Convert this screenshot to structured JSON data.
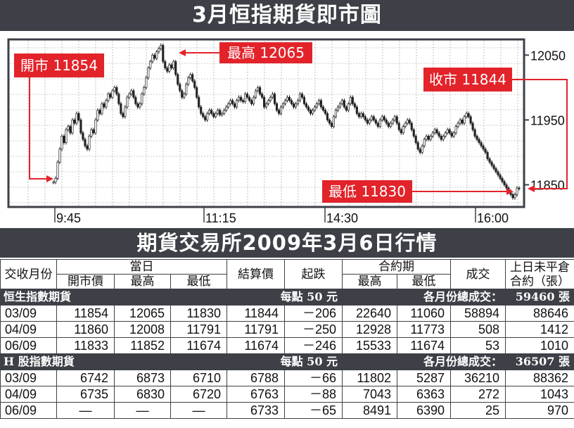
{
  "header": {
    "title": "3月恒指期貨即市圖"
  },
  "chart_data": {
    "type": "candlestick",
    "title": "3月恒指期貨即市圖",
    "x_ticks": [
      "9:45",
      "11:15",
      "14:30",
      "16:00"
    ],
    "y_ticks": [
      12050,
      11950,
      11850
    ],
    "ylim": [
      11818,
      12072
    ],
    "grid": true,
    "annotations": {
      "open": "開市 11854",
      "high": "最高 12065",
      "close": "收市 11844",
      "low": "最低 11830"
    },
    "series": [
      {
        "values": [
          11854,
          11860,
          11885,
          11905,
          11925,
          11915,
          11935,
          11940,
          11930,
          11950,
          11945,
          11960,
          11950,
          11930,
          11920,
          11910,
          11905,
          11925,
          11935,
          11930,
          11950,
          11965,
          11960,
          11975,
          11970,
          11980,
          11990,
          11985,
          11995,
          12000,
          11990,
          11975,
          11960,
          11955,
          11970,
          11985,
          11990,
          11995,
          11985,
          11975,
          11970,
          11975,
          11990,
          12000,
          12015,
          12030,
          12040,
          12050,
          12045,
          12055,
          12060,
          12065,
          12040,
          12030,
          12025,
          12035,
          12030,
          12040,
          12020,
          12005,
          11995,
          11985,
          11990,
          12005,
          12015,
          12020,
          12010,
          12000,
          11985,
          11970,
          11960,
          11955,
          11950,
          11960,
          11965,
          11960,
          11955,
          11960,
          11965,
          11958,
          11960,
          11965,
          11970,
          11975,
          11980,
          11975,
          11970,
          11980,
          11985,
          11980,
          11978,
          11990,
          11985,
          11980,
          11975,
          11985,
          11995,
          12000,
          11990,
          11985,
          11970,
          11975,
          11980,
          11985,
          11990,
          11975,
          11965,
          11960,
          11970,
          11975,
          11980,
          11985,
          11980,
          11975,
          11970,
          11975,
          11980,
          11990,
          11985,
          11975,
          11970,
          11965,
          11960,
          11965,
          11970,
          11975,
          11980,
          11970,
          11965,
          11960,
          11950,
          11945,
          11940,
          11955,
          11965,
          11970,
          11975,
          11980,
          11970,
          11965,
          11975,
          11985,
          11975,
          11970,
          11960,
          11955,
          11960,
          11955,
          11950,
          11945,
          11950,
          11955,
          11950,
          11945,
          11940,
          11950,
          11955,
          11950,
          11945,
          11940,
          11945,
          11950,
          11955,
          11945,
          11935,
          11930,
          11940,
          11945,
          11950,
          11945,
          11935,
          11925,
          11915,
          11905,
          11900,
          11910,
          11920,
          11925,
          11920,
          11925,
          11930,
          11935,
          11930,
          11925,
          11920,
          11925,
          11930,
          11935,
          11930,
          11925,
          11930,
          11940,
          11945,
          11950,
          11945,
          11955,
          11960,
          11955,
          11945,
          11935,
          11925,
          11920,
          11915,
          11910,
          11905,
          11900,
          11890,
          11885,
          11880,
          11875,
          11870,
          11865,
          11860,
          11855,
          11850,
          11845,
          11840,
          11835,
          11830,
          11835,
          11845,
          11844
        ]
      }
    ]
  },
  "table": {
    "title": "期貨交易所2009年3月6日行情",
    "headers": {
      "month": "交收月份",
      "today": "當日",
      "open": "開市價",
      "high": "最高",
      "low": "最低",
      "settle": "結算價",
      "change": "起跌",
      "contract": "合約期",
      "c_high": "最高",
      "c_low": "最低",
      "volume": "成交",
      "oi": "上日未平倉合約（張）"
    },
    "sections": [
      {
        "name": "恒生指數期貨",
        "per_point": "每點 50 元",
        "total_label": "各月份總成交：",
        "total": "59460 張",
        "rows": [
          [
            "03/09",
            "11854",
            "12065",
            "11830",
            "11844",
            "－206",
            "22640",
            "11060",
            "58894",
            "88646"
          ],
          [
            "04/09",
            "11860",
            "12008",
            "11791",
            "11791",
            "－250",
            "12928",
            "11773",
            "508",
            "1412"
          ],
          [
            "06/09",
            "11833",
            "11852",
            "11674",
            "11674",
            "－246",
            "15533",
            "11674",
            "53",
            "1010"
          ]
        ]
      },
      {
        "name": "H 股指數期貨",
        "per_point": "每點 50 元",
        "total_label": "各月份總成交：",
        "total": "36507 張",
        "rows": [
          [
            "03/09",
            "6742",
            "6873",
            "6710",
            "6788",
            "－66",
            "11802",
            "5287",
            "36210",
            "88362"
          ],
          [
            "04/09",
            "6735",
            "6830",
            "6720",
            "6763",
            "－88",
            "7043",
            "6363",
            "272",
            "1043"
          ],
          [
            "06/09",
            "—",
            "—",
            "—",
            "6733",
            "－65",
            "8491",
            "6390",
            "25",
            "970"
          ]
        ]
      }
    ]
  }
}
